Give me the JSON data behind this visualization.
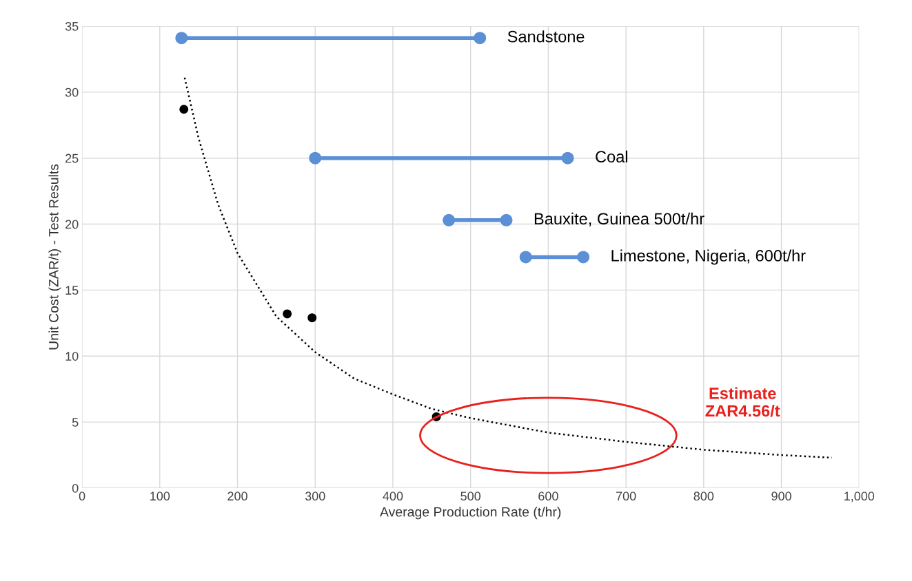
{
  "chart_data": {
    "type": "line",
    "xlabel": "Average Production Rate (t/hr)",
    "ylabel": "Unit Cost (ZAR/t) - Test Results",
    "xlim": [
      0,
      1000
    ],
    "ylim": [
      0,
      35
    ],
    "xticks": [
      0,
      100,
      200,
      300,
      400,
      500,
      600,
      700,
      800,
      900,
      {
        "value": 1000,
        "label": "1,000"
      }
    ],
    "yticks": [
      0,
      5,
      10,
      15,
      20,
      25,
      30,
      35
    ],
    "grid": true,
    "legend": false,
    "series": [
      {
        "name": "Sandstone",
        "color": "#5b8fd6",
        "marker": "circle",
        "x": [
          128,
          512
        ],
        "values": [
          34.1,
          34.1
        ]
      },
      {
        "name": "Coal",
        "color": "#5b8fd6",
        "marker": "circle",
        "x": [
          300,
          625
        ],
        "values": [
          25,
          25
        ]
      },
      {
        "name": "Bauxite, Guinea 500t/hr",
        "color": "#5b8fd6",
        "marker": "circle",
        "x": [
          472,
          546
        ],
        "values": [
          20.3,
          20.3
        ]
      },
      {
        "name": "Limestone, Nigeria, 600t/hr",
        "color": "#5b8fd6",
        "marker": "circle",
        "x": [
          571,
          645
        ],
        "values": [
          17.5,
          17.5
        ]
      },
      {
        "type": "scatter",
        "color": "#000000",
        "marker": "circle",
        "x": [
          131,
          264,
          296,
          456
        ],
        "values": [
          28.7,
          13.2,
          12.9,
          5.4
        ]
      },
      {
        "color": "#000000",
        "marker": "none",
        "line_style": "dotted",
        "x": [
          132,
          150,
          175,
          200,
          250,
          300,
          350,
          400,
          450,
          500,
          600,
          700,
          800,
          900,
          965
        ],
        "values": [
          31.1,
          26.5,
          21.5,
          17.8,
          13.0,
          10.3,
          8.3,
          7.1,
          6.0,
          5.3,
          4.2,
          3.5,
          2.9,
          2.5,
          2.3
        ]
      }
    ],
    "annotations": [
      "Estimate\nZAR4.56/t"
    ]
  }
}
